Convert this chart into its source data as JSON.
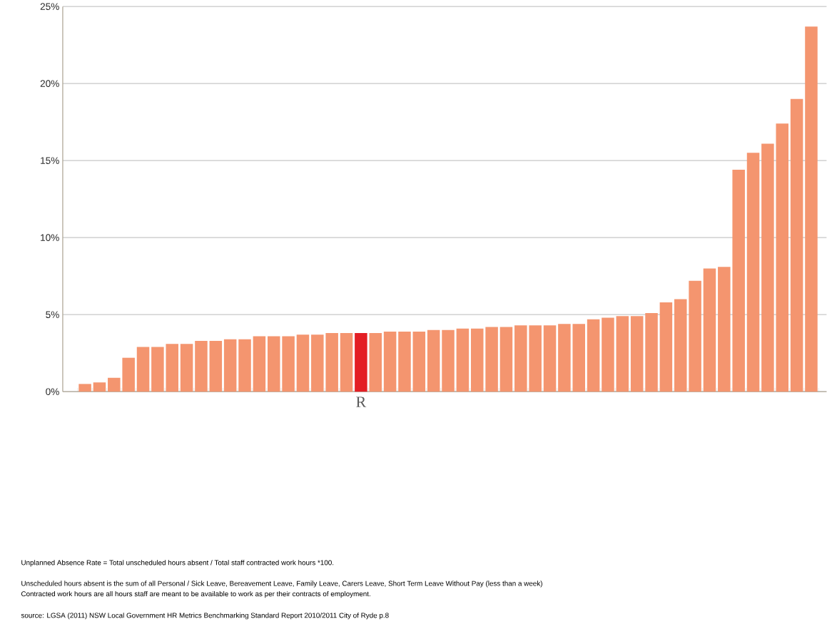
{
  "chart_data": {
    "type": "bar",
    "categories": [
      null,
      null,
      null,
      null,
      null,
      null,
      null,
      null,
      null,
      null,
      null,
      null,
      null,
      null,
      null,
      null,
      null,
      null,
      null,
      "R",
      null,
      null,
      null,
      null,
      null,
      null,
      null,
      null,
      null,
      null,
      null,
      null,
      null,
      null,
      null,
      null,
      null,
      null,
      null,
      null,
      null,
      null,
      null,
      null,
      null,
      null,
      null,
      null,
      null,
      null,
      null
    ],
    "values": [
      0.5,
      0.6,
      0.9,
      2.2,
      2.9,
      2.9,
      3.1,
      3.1,
      3.3,
      3.3,
      3.4,
      3.4,
      3.6,
      3.6,
      3.6,
      3.7,
      3.7,
      3.8,
      3.8,
      3.8,
      3.8,
      3.9,
      3.9,
      3.9,
      4.0,
      4.0,
      4.1,
      4.1,
      4.2,
      4.2,
      4.3,
      4.3,
      4.3,
      4.4,
      4.4,
      4.7,
      4.8,
      4.9,
      4.9,
      5.1,
      5.8,
      6.0,
      7.2,
      8.0,
      8.1,
      14.4,
      15.5,
      16.1,
      17.4,
      19.0,
      23.7
    ],
    "colors": [
      "#f4956f",
      "#f4956f",
      "#f4956f",
      "#f4956f",
      "#f4956f",
      "#f4956f",
      "#f4956f",
      "#f4956f",
      "#f4956f",
      "#f4956f",
      "#f4956f",
      "#f4956f",
      "#f4956f",
      "#f4956f",
      "#f4956f",
      "#f4956f",
      "#f4956f",
      "#f4956f",
      "#f4956f",
      "#e31e24",
      "#f4956f",
      "#f4956f",
      "#f4956f",
      "#f4956f",
      "#f4956f",
      "#f4956f",
      "#f4956f",
      "#f4956f",
      "#f4956f",
      "#f4956f",
      "#f4956f",
      "#f4956f",
      "#f4956f",
      "#f4956f",
      "#f4956f",
      "#f4956f",
      "#f4956f",
      "#f4956f",
      "#f4956f",
      "#f4956f",
      "#f4956f",
      "#f4956f",
      "#f4956f",
      "#f4956f",
      "#f4956f",
      "#f4956f",
      "#f4956f",
      "#f4956f",
      "#f4956f",
      "#f4956f",
      "#f4956f"
    ],
    "ylim": [
      0,
      25
    ],
    "yticks": [
      {
        "value": 0,
        "label": "0%"
      },
      {
        "value": 5,
        "label": "5%"
      },
      {
        "value": 10,
        "label": "10%"
      },
      {
        "value": 15,
        "label": "15%"
      },
      {
        "value": 20,
        "label": "20%"
      },
      {
        "value": 25,
        "label": "25%"
      }
    ],
    "grid": "y",
    "annotations": [
      "Unplanned Absence Rate = Total unscheduled hours absent / Total staff contracted work hours *100.",
      "Unscheduled hours absent is the sum of all Personal / Sick Leave, Bereavement Leave, Family Leave, Carers Leave, Short Term Leave Without Pay (less than a week)",
      "Contracted work hours are all hours staff are meant to be available to work as per their contracts of employment.",
      "source: LGSA (2011) NSW Local Government HR Metrics Benchmarking Standard Report 2010/2011 City of Ryde p.8"
    ]
  }
}
